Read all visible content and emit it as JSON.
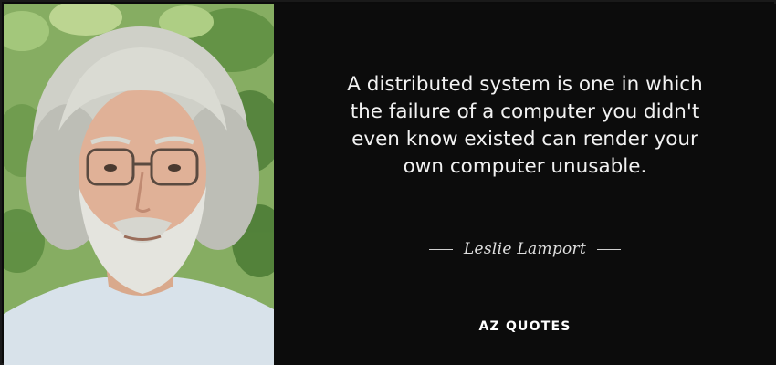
{
  "quote": {
    "lines": [
      "A distributed system is one in which",
      "the failure of a computer you didn't",
      "even know existed can render your",
      "own computer unusable."
    ]
  },
  "author": {
    "name": "Leslie Lamport"
  },
  "brand": {
    "name": "AZ QUOTES"
  },
  "colors": {
    "background": "#0c0c0c",
    "text": "#f2f2f2",
    "foliage": "#7aa05a"
  }
}
